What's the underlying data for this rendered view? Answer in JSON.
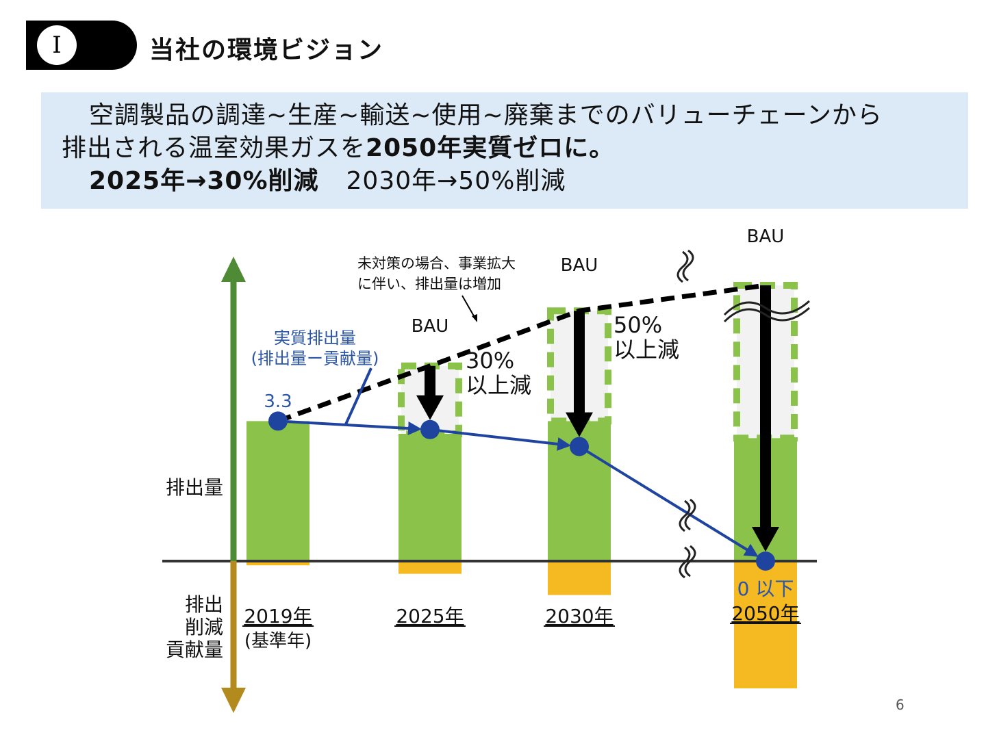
{
  "header": {
    "section_number": "I",
    "title": "当社の環境ビジョン"
  },
  "vision": {
    "line1": "空調製品の調達~生産~輸送~使用~廃棄までのバリューチェーンから",
    "line2_prefix": "排出される温室効果ガスを",
    "line2_bold": "2050年実質ゼロに。",
    "line3_bold": "2025年→30%削減",
    "line3_rest": "2030年→50%削減"
  },
  "chart_data": {
    "type": "bar",
    "categories": [
      "2019年",
      "2025年",
      "2030年",
      "2050年"
    ],
    "category_notes": [
      "(基準年)",
      "",
      "",
      ""
    ],
    "series": [
      {
        "name": "排出量",
        "values": [
          3.3,
          3.0,
          3.3,
          2.9
        ]
      },
      {
        "name": "排出削減貢献量",
        "values": [
          -0.1,
          -0.3,
          -0.8,
          -3.0
        ]
      },
      {
        "name": "BAU",
        "values": [
          null,
          4.6,
          5.9,
          6.5
        ]
      },
      {
        "name": "実質排出量(排出量ー貢献量)",
        "values": [
          3.3,
          3.1,
          2.7,
          0
        ]
      }
    ],
    "axis_labels": {
      "up": "排出量",
      "down": "排出\n削減\n貢献量"
    },
    "annotations": {
      "start_value": "3.3",
      "net_label_line1": "実質排出量",
      "net_label_line2": "(排出量ー貢献量)",
      "bau_note_line1": "未対策の場合、事業拡大",
      "bau_note_line2": "に伴い、排出量は増加",
      "bau": "BAU",
      "reduction_2025_line1": "30%",
      "reduction_2025_line2": "以上減",
      "reduction_2030_line1": "50%",
      "reduction_2030_line2": "以上減",
      "final_label": "0 以下"
    },
    "colors": {
      "emission": "#8bc34a",
      "contribution": "#f5b921",
      "net": "#1f44a0",
      "bau_line": "#000000",
      "bau_dash": "#8bc34a",
      "axis_up": "#4f8a35",
      "axis_down": "#b38a1e",
      "baseline": "#333333",
      "label_blue": "#2b55a6"
    }
  },
  "page_number": "6"
}
